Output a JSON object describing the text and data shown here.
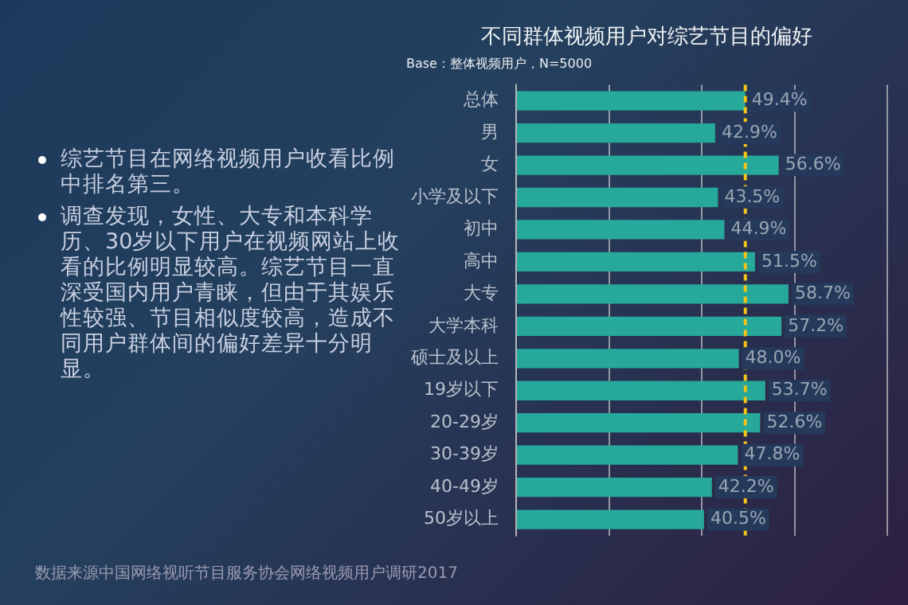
{
  "chart_data": {
    "type": "bar",
    "orientation": "horizontal",
    "title": "不同群体视频用户对综艺节目的偏好",
    "subtitle": "Base：整体视频用户，N=5000",
    "categories": [
      "总体",
      "男",
      "女",
      "小学及以下",
      "初中",
      "高中",
      "大专",
      "大学本科",
      "硕士及以上",
      "19岁以下",
      "20-29岁",
      "30-39岁",
      "40-49岁",
      "50岁以上"
    ],
    "values": [
      49.4,
      42.9,
      56.6,
      43.5,
      44.9,
      51.5,
      58.7,
      57.2,
      48.0,
      53.7,
      52.6,
      47.8,
      42.2,
      40.5
    ],
    "value_labels": [
      "49.4%",
      "42.9%",
      "56.6%",
      "43.5%",
      "44.9%",
      "51.5%",
      "58.7%",
      "57.2%",
      "48.0%",
      "53.7%",
      "52.6%",
      "47.8%",
      "42.2%",
      "40.5%"
    ],
    "color": "#26a89a",
    "xlim": [
      0,
      80
    ],
    "xticks": [
      {
        "value": 0,
        "label": null
      },
      {
        "value": 20,
        "label": null
      },
      {
        "value": 40,
        "label": null
      },
      {
        "value": 60,
        "label": null
      },
      {
        "value": 80,
        "label": null
      }
    ],
    "grid": "x",
    "legend": false,
    "ref_lines": [
      {
        "axis": "x",
        "value": 49.4,
        "color": "#f2c318",
        "line_style": "dashed"
      }
    ],
    "annotations": [
      "综艺节目在网络视频用户收看比例中排名第三。",
      "调查发现，女性、大专和本科学历、30岁以下用户在视频网站上收看的比例明显较高。综艺节目一直深受国内用户青睐，但由于其娱乐性较强、节目相似度较高，造成不同用户群体间的偏好差异十分明显。",
      "数据来源中国网络视听节目服务协会网络视频用户调研2017"
    ]
  }
}
